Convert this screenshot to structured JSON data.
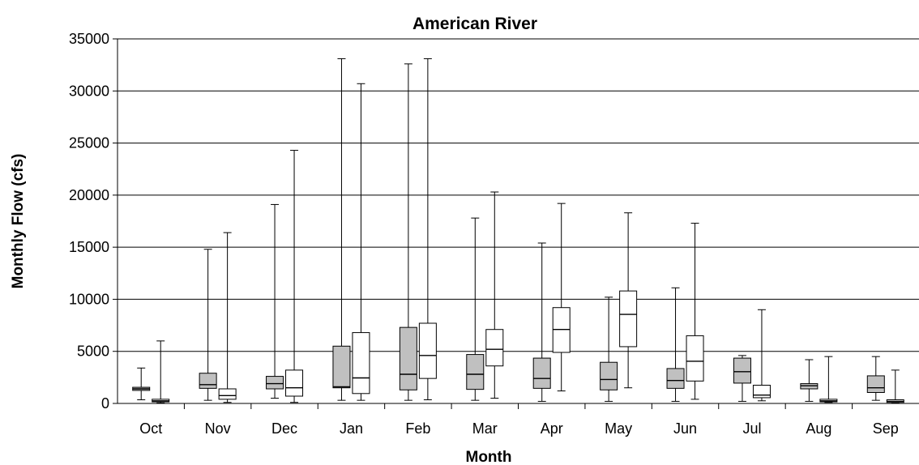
{
  "chart_data": {
    "type": "boxplot",
    "title": "American River",
    "xlabel": "Month",
    "ylabel": "Monthly Flow (cfs)",
    "ylim": [
      0,
      35000
    ],
    "yticks": [
      "0",
      "5000",
      "10000",
      "15000",
      "20000",
      "25000",
      "30000",
      "35000"
    ],
    "grid": "horizontal",
    "categories": [
      "Oct",
      "Nov",
      "Dec",
      "Jan",
      "Feb",
      "Mar",
      "Apr",
      "May",
      "Jun",
      "Jul",
      "Aug",
      "Sep"
    ],
    "colors": {
      "series_a": "#c0c0c0",
      "series_b": "#ffffff",
      "stroke": "#000000"
    },
    "series": [
      {
        "fill": "#c0c0c0",
        "boxes": [
          {
            "min": 350,
            "q1": 1250,
            "median": 1400,
            "q3": 1550,
            "max": 3400
          },
          {
            "min": 300,
            "q1": 1450,
            "median": 1800,
            "q3": 2900,
            "max": 14800
          },
          {
            "min": 500,
            "q1": 1400,
            "median": 1900,
            "q3": 2600,
            "max": 19100
          },
          {
            "min": 300,
            "q1": 1500,
            "median": 1600,
            "q3": 5500,
            "max": 33100
          },
          {
            "min": 300,
            "q1": 1300,
            "median": 2800,
            "q3": 7300,
            "max": 32600
          },
          {
            "min": 300,
            "q1": 1350,
            "median": 2800,
            "q3": 4700,
            "max": 17800
          },
          {
            "min": 200,
            "q1": 1450,
            "median": 2400,
            "q3": 4350,
            "max": 15400
          },
          {
            "min": 200,
            "q1": 1300,
            "median": 2300,
            "q3": 3950,
            "max": 10200
          },
          {
            "min": 200,
            "q1": 1450,
            "median": 2200,
            "q3": 3350,
            "max": 11100
          },
          {
            "min": 200,
            "q1": 1950,
            "median": 3050,
            "q3": 4350,
            "max": 4600
          },
          {
            "min": 200,
            "q1": 1400,
            "median": 1700,
            "q3": 1900,
            "max": 4200
          },
          {
            "min": 300,
            "q1": 1050,
            "median": 1500,
            "q3": 2650,
            "max": 4500
          }
        ]
      },
      {
        "fill": "#ffffff",
        "boxes": [
          {
            "min": 50,
            "q1": 150,
            "median": 250,
            "q3": 400,
            "max": 6000
          },
          {
            "min": 100,
            "q1": 400,
            "median": 750,
            "q3": 1400,
            "max": 16400
          },
          {
            "min": 100,
            "q1": 700,
            "median": 1500,
            "q3": 3200,
            "max": 24300
          },
          {
            "min": 300,
            "q1": 950,
            "median": 2450,
            "q3": 6800,
            "max": 30700
          },
          {
            "min": 350,
            "q1": 2400,
            "median": 4600,
            "q3": 7700,
            "max": 33100
          },
          {
            "min": 500,
            "q1": 3600,
            "median": 5200,
            "q3": 7100,
            "max": 20300
          },
          {
            "min": 1200,
            "q1": 4900,
            "median": 7100,
            "q3": 9200,
            "max": 19200
          },
          {
            "min": 1500,
            "q1": 5450,
            "median": 8550,
            "q3": 10800,
            "max": 18300
          },
          {
            "min": 400,
            "q1": 2150,
            "median": 4050,
            "q3": 6500,
            "max": 17300
          },
          {
            "min": 250,
            "q1": 550,
            "median": 800,
            "q3": 1750,
            "max": 9000
          },
          {
            "min": 100,
            "q1": 150,
            "median": 250,
            "q3": 400,
            "max": 4500
          },
          {
            "min": 50,
            "q1": 100,
            "median": 200,
            "q3": 350,
            "max": 3200
          }
        ]
      }
    ]
  }
}
